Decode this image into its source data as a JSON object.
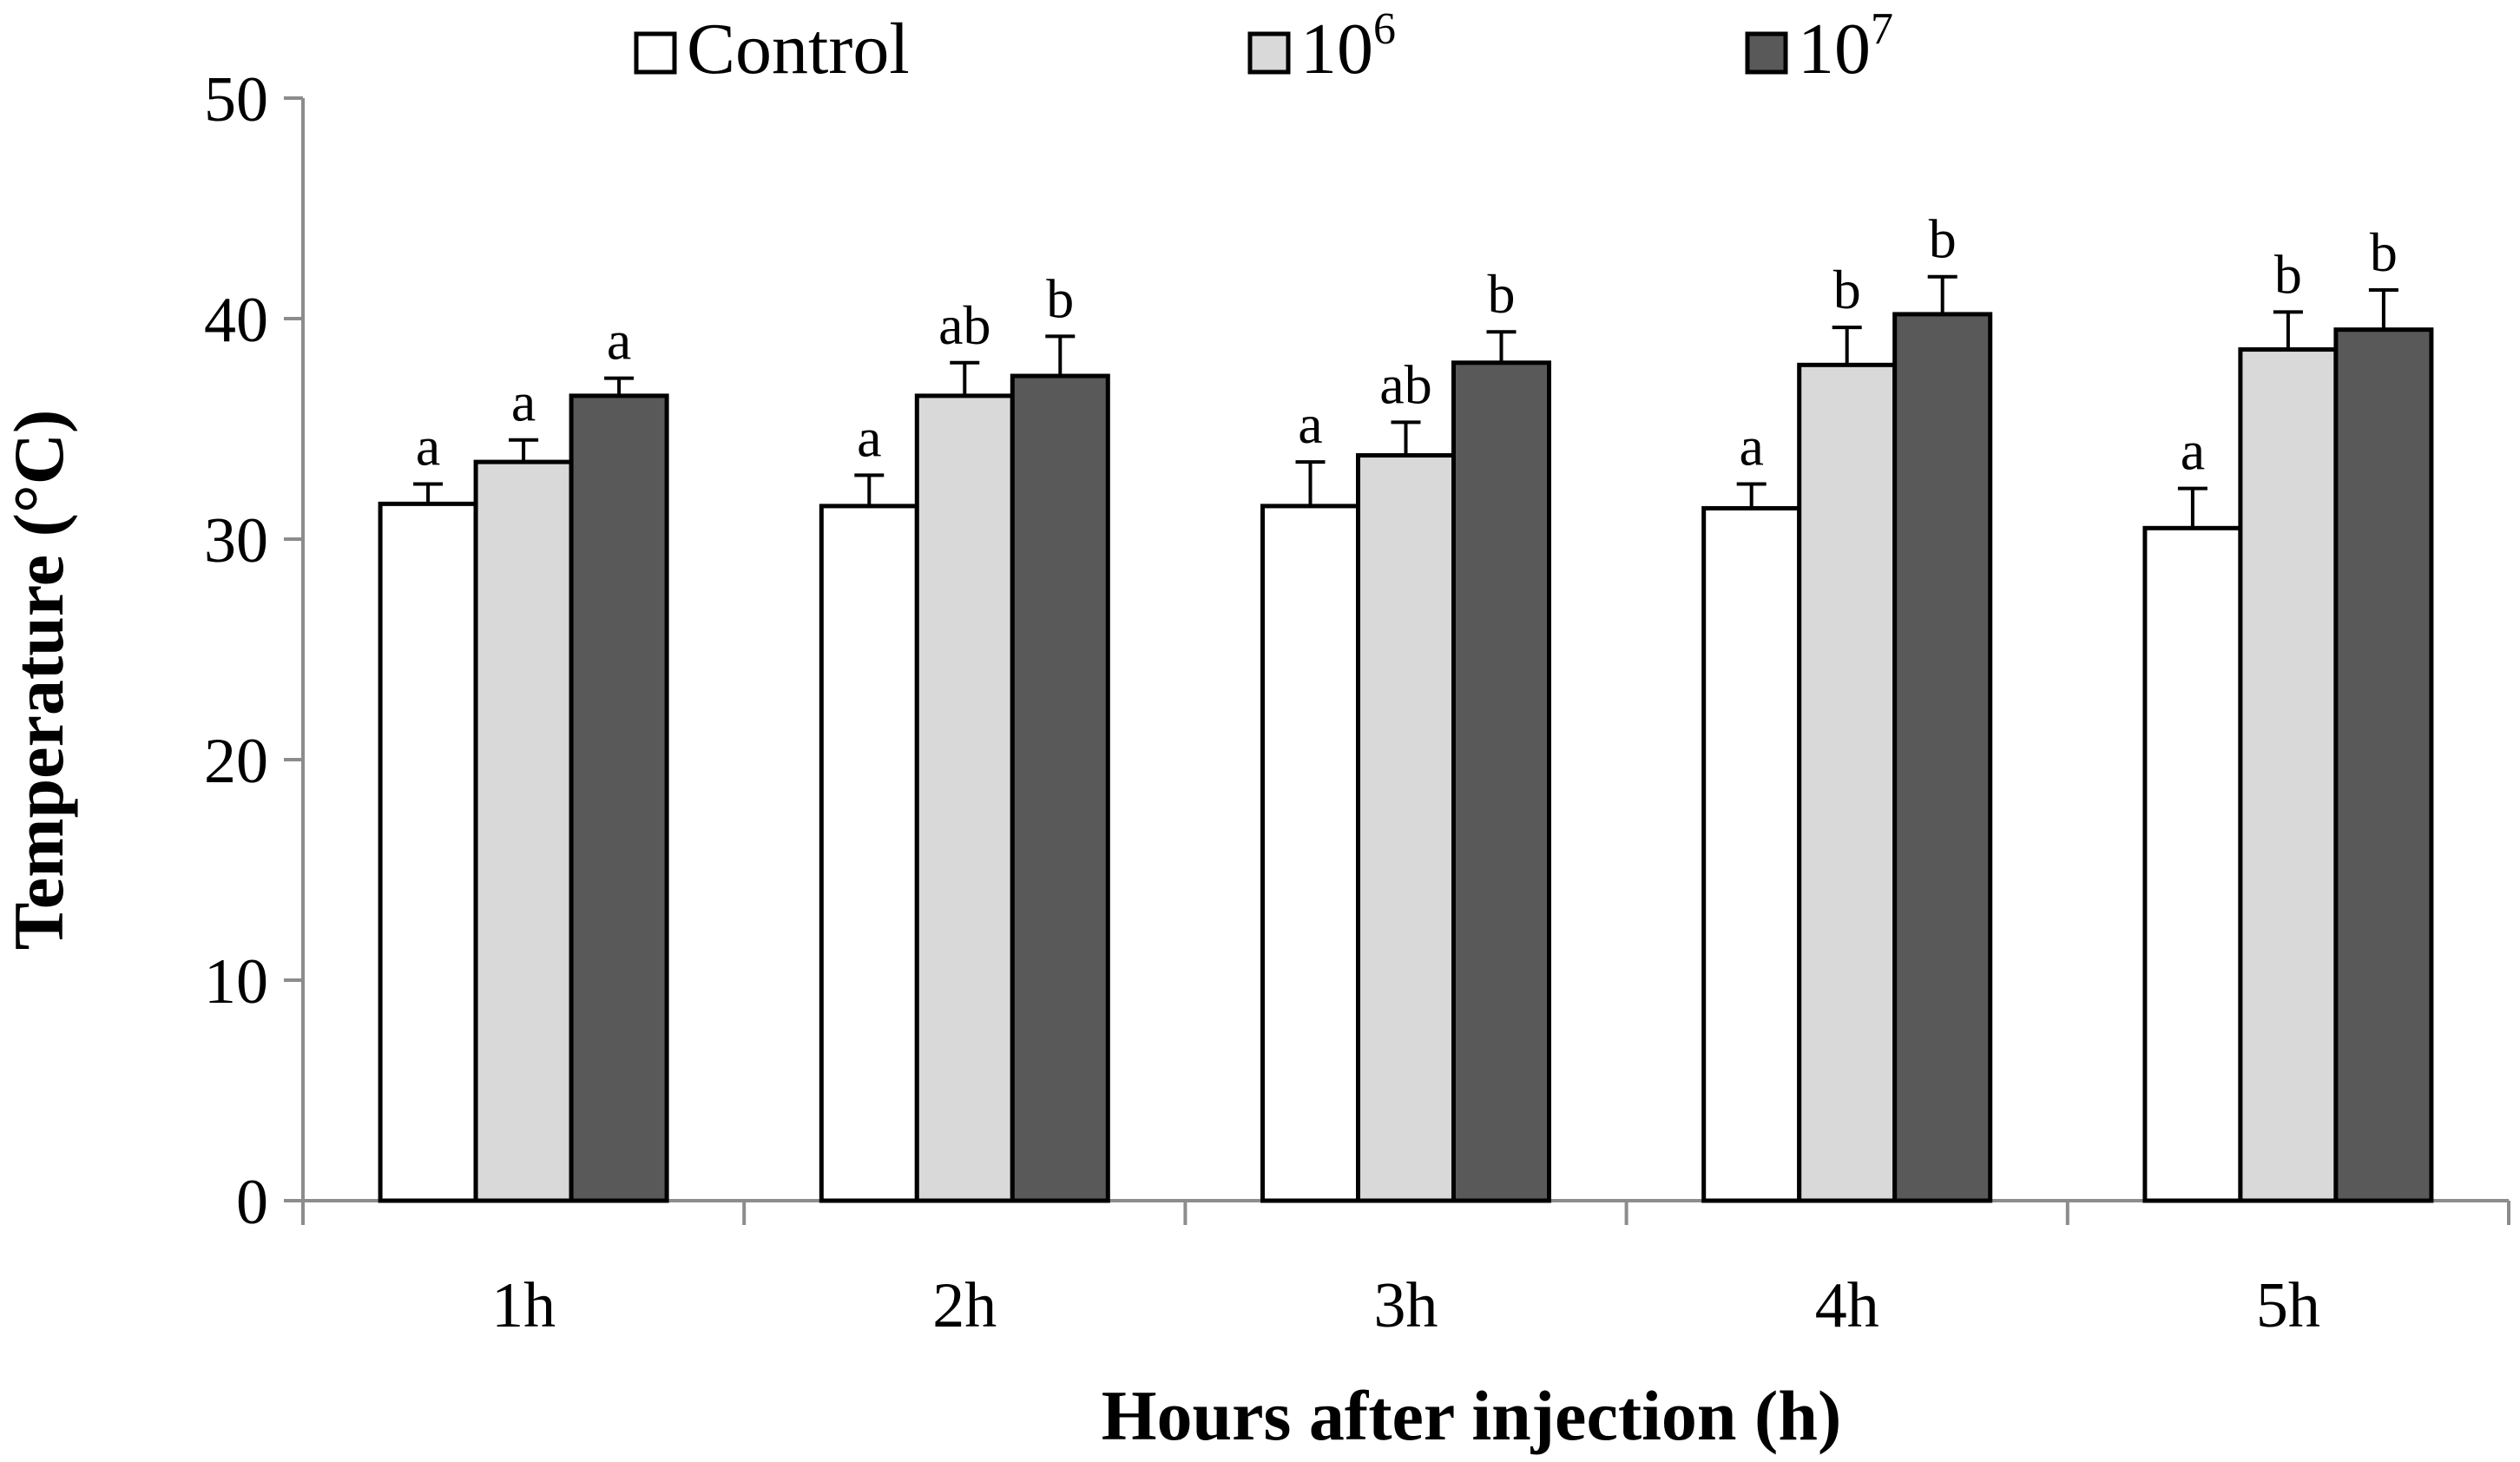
{
  "chart_data": {
    "type": "bar",
    "categories": [
      "1h",
      "2h",
      "3h",
      "4h",
      "5h"
    ],
    "series": [
      {
        "name": "Control",
        "color": "#ffffff",
        "values": [
          31.6,
          31.5,
          31.5,
          31.4,
          30.5
        ],
        "errors": [
          0.9,
          1.4,
          2.0,
          1.1,
          1.8
        ],
        "labels": [
          "a",
          "a",
          "a",
          "a",
          "a"
        ]
      },
      {
        "name": "10",
        "name_sup": "6",
        "color": "#d9d9d9",
        "values": [
          33.5,
          36.5,
          33.8,
          37.9,
          38.6
        ],
        "errors": [
          1.0,
          1.5,
          1.5,
          1.7,
          1.7
        ],
        "labels": [
          "a",
          "ab",
          "ab",
          "b",
          "b"
        ]
      },
      {
        "name": "10",
        "name_sup": "7",
        "color": "#595959",
        "values": [
          36.5,
          37.4,
          38.0,
          40.2,
          39.5
        ],
        "errors": [
          0.8,
          1.8,
          1.4,
          1.7,
          1.8
        ],
        "labels": [
          "a",
          "b",
          "b",
          "b",
          "b"
        ]
      }
    ],
    "xlabel": "Hours after injection (h)",
    "ylabel": "Temperature (°C)",
    "ylim": [
      0,
      50
    ],
    "yticks": [
      0,
      10,
      20,
      30,
      40,
      50
    ],
    "grid": false,
    "legend_position": "top"
  }
}
